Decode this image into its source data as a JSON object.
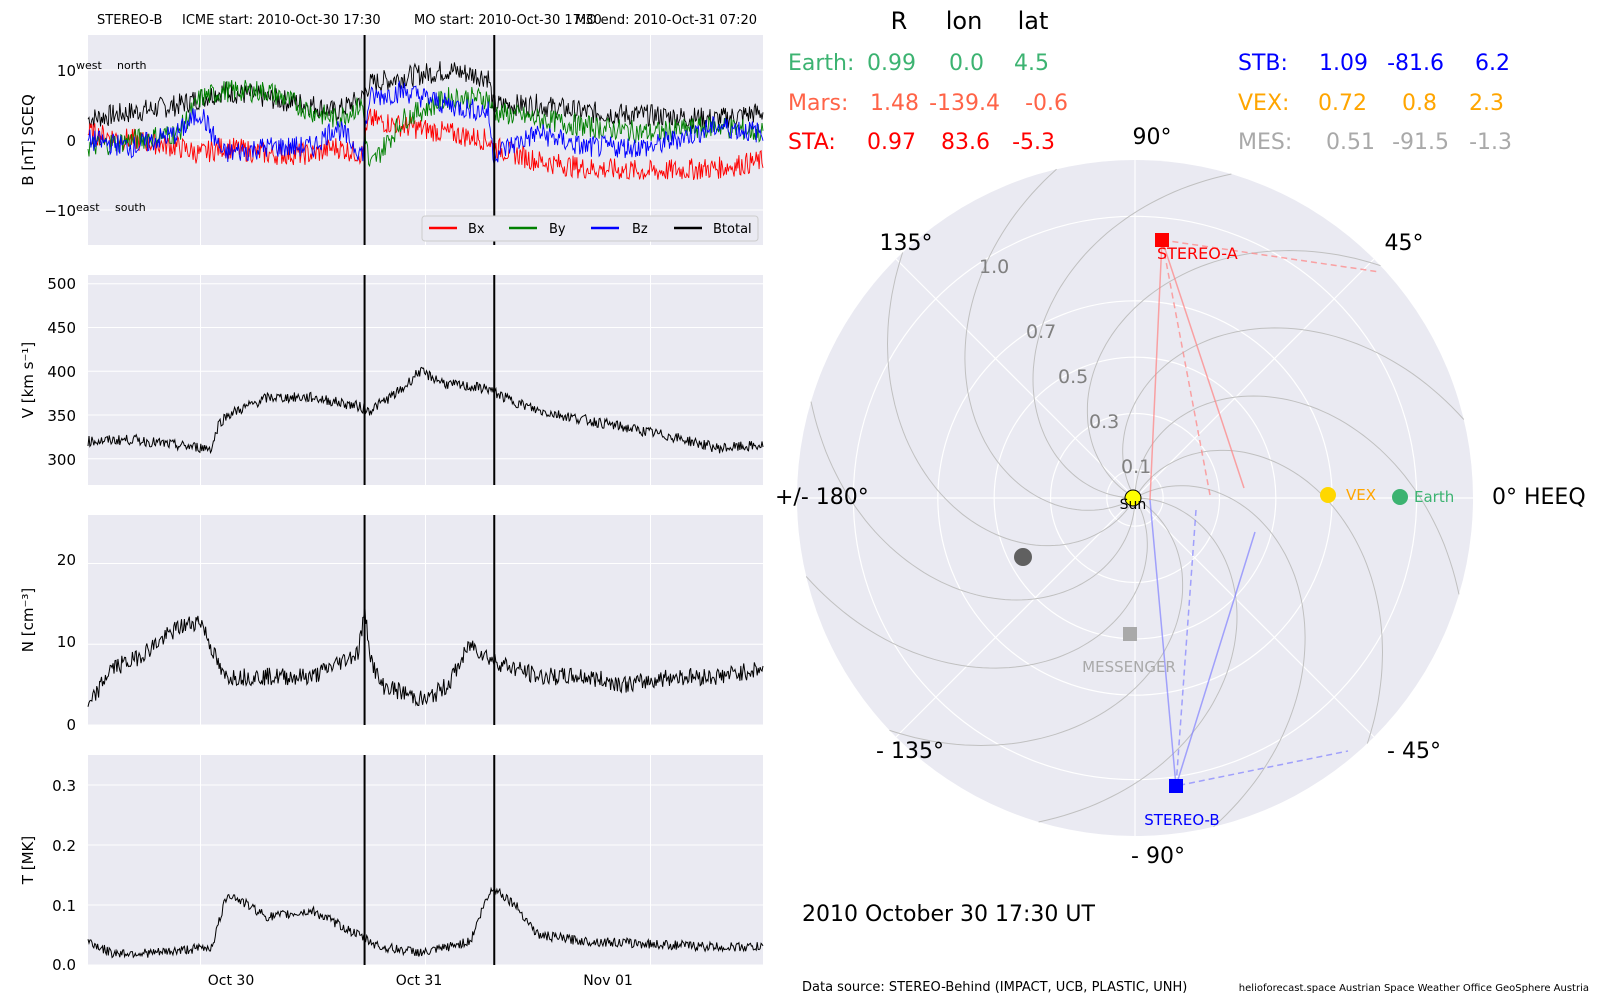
{
  "header": {
    "spacecraft": "STEREO-B",
    "icme_start": "ICME start: 2010-Oct-30 17:30",
    "mo_start": "MO start: 2010-Oct-30 17:30",
    "mo_end": "MO end: 2010-Oct-31 07:20"
  },
  "colors": {
    "panel_bg": "#eaeaf2",
    "grid": "#ffffff",
    "bx": "#ff0000",
    "by": "#008000",
    "bz": "#0000ff",
    "btotal": "#000000",
    "earth": "#3cb371",
    "mars": "#ff6347",
    "sta": "#ff0000",
    "stb": "#0000ff",
    "vex": "#ffa500",
    "mes": "#a9a9a9",
    "sun": "#ffff00"
  },
  "time_axis": {
    "start": "2010-10-29 12:00",
    "end": "2010-11-01 12:00",
    "ticks": [
      {
        "t": 0.5,
        "label": "Oct 30"
      },
      {
        "t": 1.5,
        "label": "Oct 31"
      },
      {
        "t": 2.5,
        "label": "Nov 01"
      }
    ],
    "event_lines": [
      1.2292,
      1.8056
    ]
  },
  "panels": {
    "b": {
      "ylabel": "B [nT] SCEQ",
      "yticks": [
        "10",
        "0",
        "−10"
      ],
      "annot_west": "west",
      "annot_north": "north",
      "annot_east": "east",
      "annot_south": "south",
      "legend": [
        "Bx",
        "By",
        "Bz",
        "Btotal"
      ]
    },
    "v": {
      "ylabel": "V [km s⁻¹]",
      "yticks": [
        "500",
        "450",
        "400",
        "350",
        "300"
      ]
    },
    "n": {
      "ylabel": "N [cm⁻³]",
      "yticks": [
        "20",
        "10",
        "0"
      ]
    },
    "t": {
      "ylabel": "T [MK]",
      "yticks": [
        "0.3",
        "0.2",
        "0.1",
        "0.0"
      ]
    }
  },
  "chart_data": [
    {
      "type": "line",
      "title": "STEREO-B",
      "ylabel": "B [nT] SCEQ",
      "ylim": [
        -15,
        15
      ],
      "x_unit": "days since 2010-10-29 12:00",
      "series": [
        {
          "name": "Btotal",
          "x": [
            0,
            0.2,
            0.4,
            0.5,
            0.6,
            0.8,
            1.0,
            1.1,
            1.22,
            1.25,
            1.4,
            1.6,
            1.78,
            1.8,
            2.0,
            2.2,
            2.5,
            2.8,
            3.0
          ],
          "values": [
            3,
            4,
            5,
            6,
            7,
            6,
            5,
            4,
            6,
            8,
            9,
            10,
            9,
            5,
            5,
            4,
            3.5,
            3,
            4
          ]
        },
        {
          "name": "Bx",
          "x": [
            0,
            0.2,
            0.4,
            0.5,
            0.6,
            0.8,
            1.0,
            1.1,
            1.22,
            1.25,
            1.4,
            1.6,
            1.78,
            1.8,
            2.0,
            2.2,
            2.5,
            2.8,
            3.0
          ],
          "values": [
            1,
            0,
            -1,
            -2,
            -1,
            -2,
            -2,
            -1,
            -2,
            3,
            2,
            1,
            0,
            -1,
            -3,
            -4,
            -4.5,
            -4,
            -3
          ]
        },
        {
          "name": "By",
          "x": [
            0,
            0.2,
            0.4,
            0.5,
            0.6,
            0.8,
            1.0,
            1.1,
            1.22,
            1.25,
            1.4,
            1.6,
            1.78,
            1.8,
            2.0,
            2.2,
            2.5,
            2.8,
            3.0
          ],
          "values": [
            -1,
            0,
            1,
            6,
            7,
            7,
            4,
            3,
            5,
            -4,
            3,
            6,
            6,
            4,
            3,
            2,
            1,
            2,
            1
          ]
        },
        {
          "name": "Bz",
          "x": [
            0,
            0.2,
            0.4,
            0.5,
            0.6,
            0.8,
            1.0,
            1.1,
            1.22,
            1.25,
            1.4,
            1.6,
            1.78,
            1.8,
            2.0,
            2.2,
            2.5,
            2.8,
            3.0
          ],
          "values": [
            0,
            -1,
            1,
            4,
            -2,
            -1,
            -1,
            2,
            -2,
            6,
            7,
            5,
            4,
            -2,
            1,
            -1,
            -1,
            2,
            1
          ]
        }
      ]
    },
    {
      "type": "line",
      "ylabel": "V [km s⁻¹]",
      "ylim": [
        270,
        510
      ],
      "series": [
        {
          "x": [
            0,
            0.2,
            0.4,
            0.55,
            0.58,
            0.62,
            0.8,
            1.0,
            1.2,
            1.25,
            1.4,
            1.47,
            1.6,
            1.78,
            1.85,
            2.0,
            2.2,
            2.4,
            2.6,
            2.8,
            3.0
          ],
          "values": [
            320,
            322,
            315,
            312,
            340,
            350,
            370,
            370,
            360,
            355,
            380,
            400,
            385,
            380,
            370,
            355,
            345,
            335,
            325,
            312,
            315
          ]
        }
      ]
    },
    {
      "type": "line",
      "ylabel": "N [cm⁻³]",
      "ylim": [
        0,
        26
      ],
      "series": [
        {
          "x": [
            0,
            0.1,
            0.2,
            0.3,
            0.4,
            0.5,
            0.6,
            0.8,
            1.0,
            1.2,
            1.23,
            1.26,
            1.3,
            1.4,
            1.5,
            1.6,
            1.7,
            1.8,
            2.0,
            2.2,
            2.4,
            2.6,
            2.8,
            3.0
          ],
          "values": [
            2,
            7,
            8,
            10,
            12,
            13,
            6,
            6,
            6,
            9,
            14,
            8,
            5,
            4,
            3,
            5,
            10,
            8,
            6,
            6,
            5,
            6,
            6,
            7
          ]
        }
      ]
    },
    {
      "type": "line",
      "ylabel": "T [MK]",
      "ylim": [
        0,
        0.35
      ],
      "series": [
        {
          "x": [
            0,
            0.1,
            0.3,
            0.55,
            0.62,
            0.8,
            1.0,
            1.2,
            1.3,
            1.5,
            1.7,
            1.76,
            1.8,
            1.9,
            2.0,
            2.2,
            2.5,
            2.8,
            3.0
          ],
          "values": [
            0.04,
            0.02,
            0.02,
            0.03,
            0.12,
            0.08,
            0.09,
            0.05,
            0.03,
            0.02,
            0.04,
            0.1,
            0.13,
            0.1,
            0.05,
            0.04,
            0.035,
            0.03,
            0.03
          ]
        }
      ]
    },
    {
      "type": "polar",
      "table_header": [
        "R",
        "lon",
        "lat"
      ],
      "bodies": [
        {
          "name": "Earth",
          "label": "Earth:",
          "R": "0.99",
          "lon": "0.0",
          "lat": "4.5"
        },
        {
          "name": "Mars",
          "label": "Mars:",
          "R": "1.48",
          "lon": "-139.4",
          "lat": "-0.6"
        },
        {
          "name": "STA",
          "label": "STA:",
          "R": "0.97",
          "lon": "83.6",
          "lat": "-5.3"
        },
        {
          "name": "STB",
          "label": "STB:",
          "R": "1.09",
          "lon": "-81.6",
          "lat": "6.2"
        },
        {
          "name": "VEX",
          "label": "VEX:",
          "R": "0.72",
          "lon": "0.8",
          "lat": "2.3"
        },
        {
          "name": "MES",
          "label": "MES:",
          "R": "0.51",
          "lon": "-91.5",
          "lat": "-1.3"
        }
      ],
      "radial_ticks": [
        "0.1",
        "0.3",
        "0.5",
        "0.7",
        "1.0"
      ],
      "angle_labels": {
        "a90": "90°",
        "a45": "45°",
        "a135": "135°",
        "a0": "0° HEEQ",
        "a180": "+/- 180°",
        "am45": "- 45°",
        "am90": "- 90°",
        "am135": "- 135°"
      },
      "body_labels": {
        "sta": "STEREO-A",
        "stb": "STEREO-B",
        "vex": "VEX",
        "earth": "Earth",
        "mes": "MESSENGER",
        "sun": "Sun"
      }
    }
  ],
  "footer": {
    "datetime": "2010 October 30  17:30 UT",
    "source": "Data source: STEREO-Behind (IMPACT, UCB, PLASTIC, UNH)",
    "credits": "helioforecast.space   Austrian Space Weather Office   GeoSphere Austria"
  }
}
